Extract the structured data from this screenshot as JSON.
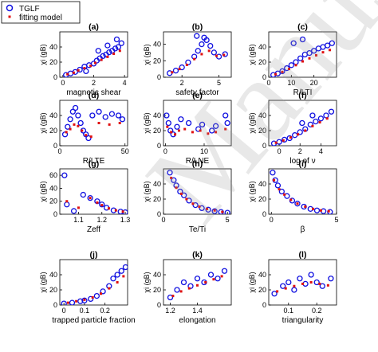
{
  "legend": {
    "tglf": "TGLF",
    "model": "fitting model"
  },
  "colors": {
    "tglf": "#1010e0",
    "model": "#e01010",
    "axis": "#000000"
  },
  "watermark": "Manuscript",
  "chart_data": [
    {
      "type": "scatter",
      "label": "(a)",
      "xlabel": "magnetic shear",
      "ylabel": "χi (gB)",
      "xlim": [
        -0.2,
        4.2
      ],
      "ylim": [
        0,
        60
      ],
      "xticks": [
        0,
        2,
        4
      ],
      "yticks": [
        0,
        20,
        40
      ],
      "series": [
        {
          "name": "TGLF",
          "x": [
            0.2,
            0.5,
            0.8,
            1.1,
            1.4,
            1.7,
            2.0,
            2.2,
            2.4,
            2.6,
            2.8,
            3.0,
            3.2,
            3.4,
            3.6,
            3.8,
            2.3,
            2.9,
            3.5,
            1.5
          ],
          "y": [
            3,
            5,
            7,
            10,
            14,
            16,
            18,
            22,
            25,
            28,
            30,
            33,
            35,
            38,
            40,
            45,
            35,
            42,
            50,
            8
          ]
        },
        {
          "name": "fitting model",
          "x": [
            0.3,
            0.7,
            1.0,
            1.4,
            1.8,
            2.1,
            2.5,
            2.9,
            3.3,
            3.7
          ],
          "y": [
            4,
            6,
            9,
            12,
            15,
            19,
            23,
            27,
            31,
            35
          ]
        }
      ]
    },
    {
      "type": "scatter",
      "label": "(b)",
      "xlabel": "safety factor",
      "ylabel": "χi (gB)",
      "xlim": [
        0.5,
        6
      ],
      "ylim": [
        0,
        55
      ],
      "xticks": [
        2,
        5
      ],
      "yticks": [
        0,
        20,
        40
      ],
      "series": [
        {
          "name": "TGLF",
          "x": [
            1,
            1.5,
            2,
            2.5,
            3,
            3.3,
            3.6,
            4,
            4.3,
            4.6,
            5,
            5.5,
            3.2,
            3.8
          ],
          "y": [
            5,
            8,
            12,
            18,
            25,
            32,
            40,
            45,
            38,
            30,
            25,
            28,
            50,
            48
          ]
        },
        {
          "name": "fitting model",
          "x": [
            1.2,
            1.8,
            2.4,
            3,
            3.6,
            4.2,
            4.8,
            5.4
          ],
          "y": [
            6,
            10,
            15,
            22,
            28,
            32,
            26,
            27
          ]
        }
      ]
    },
    {
      "type": "scatter",
      "label": "(c)",
      "xlabel": "R/LTI",
      "ylabel": "χi (gB)",
      "xlim": [
        0,
        30
      ],
      "ylim": [
        0,
        60
      ],
      "xticks": [
        0,
        10,
        20
      ],
      "yticks": [
        0,
        20,
        40
      ],
      "series": [
        {
          "name": "TGLF",
          "x": [
            2,
            4,
            6,
            8,
            10,
            12,
            14,
            16,
            18,
            20,
            22,
            24,
            26,
            28,
            11,
            15
          ],
          "y": [
            3,
            5,
            8,
            12,
            16,
            20,
            25,
            30,
            32,
            35,
            38,
            40,
            42,
            45,
            45,
            50
          ]
        },
        {
          "name": "fitting model",
          "x": [
            3,
            6,
            9,
            12,
            15,
            18,
            21,
            24,
            27
          ],
          "y": [
            4,
            7,
            11,
            16,
            21,
            25,
            29,
            33,
            36
          ]
        }
      ]
    },
    {
      "type": "scatter",
      "label": "(d)",
      "xlabel": "R/LTE",
      "ylabel": "χi (gB)",
      "xlim": [
        0,
        52
      ],
      "ylim": [
        0,
        60
      ],
      "xticks": [
        0,
        50
      ],
      "yticks": [
        0,
        20,
        40
      ],
      "series": [
        {
          "name": "TGLF",
          "x": [
            4,
            6,
            8,
            10,
            12,
            14,
            16,
            18,
            20,
            22,
            25,
            30,
            35,
            40,
            45,
            48
          ],
          "y": [
            15,
            25,
            35,
            45,
            50,
            40,
            30,
            20,
            15,
            10,
            40,
            45,
            38,
            42,
            40,
            35
          ]
        },
        {
          "name": "fitting model",
          "x": [
            5,
            8,
            11,
            14,
            17,
            20,
            24,
            30,
            38,
            46
          ],
          "y": [
            18,
            22,
            28,
            26,
            20,
            14,
            12,
            30,
            28,
            30
          ]
        }
      ]
    },
    {
      "type": "scatter",
      "label": "(e)",
      "xlabel": "R/LNE",
      "ylabel": "χi (gB)",
      "xlim": [
        -0.5,
        17
      ],
      "ylim": [
        0,
        60
      ],
      "xticks": [
        0,
        10
      ],
      "yticks": [
        0,
        20,
        40
      ],
      "series": [
        {
          "name": "TGLF",
          "x": [
            0.3,
            0.8,
            1.3,
            2,
            3,
            4,
            6,
            8.5,
            9.5,
            12,
            13,
            15.5,
            16
          ],
          "y": [
            40,
            30,
            20,
            15,
            25,
            35,
            30,
            22,
            28,
            20,
            26,
            40,
            30
          ]
        },
        {
          "name": "fitting model",
          "x": [
            0.5,
            1.5,
            2.5,
            3.5,
            5,
            7,
            9,
            11,
            13,
            15.5
          ],
          "y": [
            25,
            18,
            15,
            20,
            22,
            18,
            20,
            16,
            18,
            22
          ]
        }
      ]
    },
    {
      "type": "scatter",
      "label": "(f)",
      "xlabel": "log of ν",
      "ylabel": "χi (gB)",
      "xlim": [
        -1,
        5.5
      ],
      "ylim": [
        0,
        60
      ],
      "xticks": [
        0,
        2,
        4
      ],
      "yticks": [
        0,
        20,
        40
      ],
      "series": [
        {
          "name": "TGLF",
          "x": [
            -0.5,
            0,
            0.5,
            1,
            1.5,
            2,
            2.5,
            3,
            3.5,
            4,
            4.5,
            5,
            2.2,
            3.2
          ],
          "y": [
            3,
            5,
            8,
            10,
            14,
            18,
            22,
            28,
            32,
            36,
            40,
            45,
            30,
            40
          ]
        },
        {
          "name": "fitting model",
          "x": [
            -0.3,
            0.4,
            1.1,
            1.8,
            2.5,
            3.2,
            3.9,
            4.6
          ],
          "y": [
            4,
            7,
            11,
            15,
            20,
            26,
            31,
            36
          ]
        }
      ]
    },
    {
      "type": "scatter",
      "label": "(g)",
      "xlabel": "Zeff",
      "ylabel": "χi (gB)",
      "xlim": [
        1.02,
        1.31
      ],
      "ylim": [
        0,
        70
      ],
      "xticks": [
        1.1,
        1.2,
        1.3
      ],
      "yticks": [
        0,
        20,
        40,
        60
      ],
      "series": [
        {
          "name": "TGLF",
          "x": [
            1.04,
            1.05,
            1.08,
            1.12,
            1.15,
            1.18,
            1.2,
            1.22,
            1.25,
            1.28,
            1.3
          ],
          "y": [
            60,
            15,
            5,
            30,
            25,
            20,
            15,
            10,
            6,
            4,
            3
          ]
        },
        {
          "name": "fitting model",
          "x": [
            1.05,
            1.1,
            1.15,
            1.18,
            1.2,
            1.23,
            1.26,
            1.29
          ],
          "y": [
            20,
            10,
            25,
            18,
            14,
            9,
            6,
            4
          ]
        }
      ]
    },
    {
      "type": "scatter",
      "label": "(h)",
      "xlabel": "Te/Ti",
      "ylabel": "χi (gB)",
      "xlim": [
        0,
        5.3
      ],
      "ylim": [
        0,
        60
      ],
      "xticks": [
        0,
        5
      ],
      "yticks": [
        0,
        20,
        40
      ],
      "series": [
        {
          "name": "TGLF",
          "x": [
            0.5,
            0.8,
            1,
            1.3,
            1.6,
            2,
            2.5,
            3,
            3.5,
            4,
            4.5,
            5
          ],
          "y": [
            55,
            45,
            38,
            30,
            25,
            18,
            12,
            8,
            6,
            4,
            3,
            2
          ]
        },
        {
          "name": "fitting model",
          "x": [
            0.6,
            1,
            1.4,
            1.8,
            2.3,
            2.8,
            3.4,
            4,
            4.6
          ],
          "y": [
            48,
            35,
            27,
            20,
            14,
            10,
            7,
            5,
            3
          ]
        }
      ]
    },
    {
      "type": "scatter",
      "label": "(i)",
      "xlabel": "β",
      "ylabel": "χi (gB)",
      "xlim": [
        -0.2,
        5
      ],
      "ylim": [
        0,
        60
      ],
      "xticks": [
        0,
        5
      ],
      "yticks": [
        0,
        20,
        40
      ],
      "series": [
        {
          "name": "TGLF",
          "x": [
            0.1,
            0.3,
            0.5,
            0.8,
            1.2,
            1.6,
            2,
            2.5,
            3,
            3.5,
            4,
            4.5
          ],
          "y": [
            55,
            45,
            38,
            30,
            24,
            18,
            14,
            10,
            7,
            5,
            4,
            3
          ]
        },
        {
          "name": "fitting model",
          "x": [
            0.2,
            0.6,
            1,
            1.5,
            2,
            2.6,
            3.2,
            3.8,
            4.4
          ],
          "y": [
            45,
            33,
            26,
            19,
            14,
            10,
            7,
            5,
            4
          ]
        }
      ]
    },
    {
      "type": "scatter",
      "label": "(j)",
      "xlabel": "trapped particle fraction",
      "ylabel": "χi (gB)",
      "xlim": [
        -0.02,
        0.31
      ],
      "ylim": [
        0,
        60
      ],
      "xticks": [
        0,
        0.1,
        0.2
      ],
      "yticks": [
        0,
        20,
        40
      ],
      "series": [
        {
          "name": "TGLF",
          "x": [
            0,
            0.04,
            0.08,
            0.1,
            0.13,
            0.16,
            0.19,
            0.22,
            0.24,
            0.26,
            0.28,
            0.3
          ],
          "y": [
            2,
            3,
            5,
            6,
            8,
            12,
            18,
            25,
            35,
            40,
            45,
            50
          ]
        },
        {
          "name": "fitting model",
          "x": [
            0.02,
            0.06,
            0.1,
            0.14,
            0.18,
            0.22,
            0.26,
            0.29
          ],
          "y": [
            3,
            5,
            7,
            10,
            15,
            22,
            30,
            38
          ]
        }
      ]
    },
    {
      "type": "scatter",
      "label": "(k)",
      "xlabel": "elongation",
      "ylabel": "χi (gB)",
      "xlim": [
        1.15,
        1.65
      ],
      "ylim": [
        0,
        60
      ],
      "xticks": [
        1.2,
        1.4
      ],
      "yticks": [
        0,
        20,
        40
      ],
      "series": [
        {
          "name": "TGLF",
          "x": [
            1.2,
            1.25,
            1.3,
            1.35,
            1.4,
            1.45,
            1.5,
            1.55,
            1.6
          ],
          "y": [
            10,
            20,
            30,
            25,
            35,
            30,
            40,
            35,
            45
          ]
        },
        {
          "name": "fitting model",
          "x": [
            1.22,
            1.28,
            1.34,
            1.4,
            1.46,
            1.52,
            1.58
          ],
          "y": [
            12,
            18,
            22,
            26,
            30,
            34,
            38
          ]
        }
      ]
    },
    {
      "type": "scatter",
      "label": "(l)",
      "xlabel": "triangularity",
      "ylabel": "χi (gB)",
      "xlim": [
        0.03,
        0.27
      ],
      "ylim": [
        0,
        60
      ],
      "xticks": [
        0.1,
        0.2
      ],
      "yticks": [
        0,
        20,
        40
      ],
      "series": [
        {
          "name": "TGLF",
          "x": [
            0.05,
            0.08,
            0.1,
            0.12,
            0.14,
            0.16,
            0.18,
            0.2,
            0.22,
            0.25
          ],
          "y": [
            15,
            25,
            30,
            20,
            35,
            28,
            40,
            30,
            25,
            35
          ]
        },
        {
          "name": "fitting model",
          "x": [
            0.06,
            0.09,
            0.12,
            0.15,
            0.18,
            0.21,
            0.24
          ],
          "y": [
            18,
            22,
            25,
            28,
            30,
            28,
            26
          ]
        }
      ]
    }
  ]
}
